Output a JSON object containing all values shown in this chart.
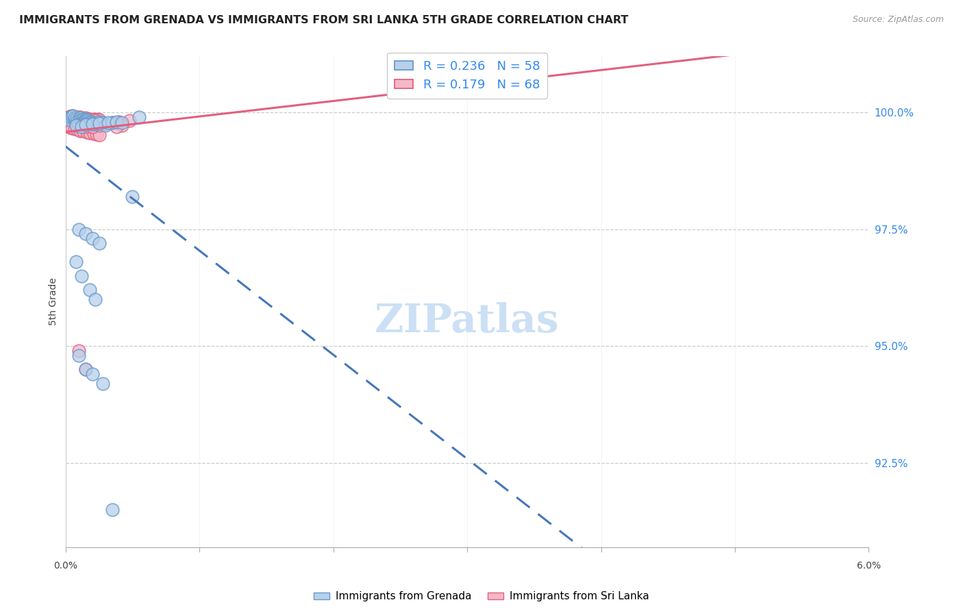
{
  "title": "IMMIGRANTS FROM GRENADA VS IMMIGRANTS FROM SRI LANKA 5TH GRADE CORRELATION CHART",
  "source": "Source: ZipAtlas.com",
  "ylabel": "5th Grade",
  "yaxis_labels": [
    "100.0%",
    "97.5%",
    "95.0%",
    "92.5%"
  ],
  "yaxis_values": [
    1.0,
    0.975,
    0.95,
    0.925
  ],
  "xmin": 0.0,
  "xmax": 0.06,
  "ymin": 0.907,
  "ymax": 1.012,
  "legend_r1": "0.236",
  "legend_n1": "58",
  "legend_r2": "0.179",
  "legend_n2": "68",
  "color_grenada_face": "#b8d0ea",
  "color_grenada_edge": "#6699cc",
  "color_srilanka_face": "#f5b8c8",
  "color_srilanka_edge": "#e06080",
  "color_line_grenada": "#4477bb",
  "color_line_srilanka": "#e06080",
  "color_title": "#222222",
  "color_rhs_labels": "#3388ee",
  "watermark_color": "#cce0f5",
  "scatter_grenada_x": [
    0.0002,
    0.0003,
    0.0005,
    0.0006,
    0.0007,
    0.0008,
    0.0009,
    0.001,
    0.001,
    0.0011,
    0.0011,
    0.0012,
    0.0012,
    0.0013,
    0.0013,
    0.0014,
    0.0014,
    0.0015,
    0.0015,
    0.0016,
    0.0016,
    0.0017,
    0.0017,
    0.0018,
    0.0018,
    0.0019,
    0.002,
    0.002,
    0.0021,
    0.0022,
    0.0023,
    0.0025,
    0.0028,
    0.003,
    0.0035,
    0.0008,
    0.0012,
    0.0015,
    0.002,
    0.0025,
    0.0032,
    0.0038,
    0.0042,
    0.005,
    0.0055,
    0.001,
    0.0015,
    0.002,
    0.0025,
    0.0008,
    0.0012,
    0.0018,
    0.0022,
    0.001,
    0.0015,
    0.002,
    0.0028,
    0.0035
  ],
  "scatter_grenada_y": [
    0.9985,
    0.999,
    0.9992,
    0.9993,
    0.9988,
    0.9986,
    0.9982,
    0.998,
    0.9975,
    0.9988,
    0.9984,
    0.9982,
    0.9978,
    0.9985,
    0.998,
    0.9983,
    0.9979,
    0.9985,
    0.9982,
    0.9984,
    0.998,
    0.9982,
    0.9978,
    0.998,
    0.9977,
    0.9979,
    0.9978,
    0.9975,
    0.9977,
    0.9976,
    0.9975,
    0.998,
    0.9978,
    0.9972,
    0.9978,
    0.9972,
    0.997,
    0.9974,
    0.9975,
    0.9976,
    0.9978,
    0.998,
    0.9978,
    0.982,
    0.999,
    0.975,
    0.974,
    0.973,
    0.972,
    0.968,
    0.965,
    0.962,
    0.96,
    0.948,
    0.945,
    0.944,
    0.942,
    0.915
  ],
  "scatter_srilanka_x": [
    0.0002,
    0.0003,
    0.0004,
    0.0005,
    0.0006,
    0.0007,
    0.0008,
    0.0009,
    0.001,
    0.001,
    0.0011,
    0.0012,
    0.0013,
    0.0014,
    0.0015,
    0.0016,
    0.0017,
    0.0018,
    0.0019,
    0.002,
    0.0021,
    0.0022,
    0.0023,
    0.0024,
    0.0025,
    0.0006,
    0.0008,
    0.001,
    0.0012,
    0.0014,
    0.0016,
    0.0018,
    0.002,
    0.0022,
    0.0003,
    0.0005,
    0.0008,
    0.0011,
    0.0014,
    0.0017,
    0.002,
    0.0003,
    0.0005,
    0.0007,
    0.0009,
    0.0011,
    0.0013,
    0.0016,
    0.0018,
    0.0021,
    0.0023,
    0.0025,
    0.0008,
    0.0012,
    0.0018,
    0.0025,
    0.0035,
    0.004,
    0.0048,
    0.0042,
    0.0038,
    0.003,
    0.0028,
    0.0015,
    0.002,
    0.0025,
    0.001,
    0.0015
  ],
  "scatter_srilanka_y": [
    0.999,
    0.9992,
    0.9991,
    0.9993,
    0.999,
    0.9988,
    0.999,
    0.9989,
    0.999,
    0.9987,
    0.999,
    0.9988,
    0.9987,
    0.9986,
    0.9988,
    0.9986,
    0.9985,
    0.9984,
    0.9983,
    0.9984,
    0.9985,
    0.9983,
    0.9984,
    0.9985,
    0.9984,
    0.9986,
    0.9984,
    0.9984,
    0.9983,
    0.9984,
    0.9984,
    0.9985,
    0.9984,
    0.9983,
    0.998,
    0.9978,
    0.9975,
    0.9973,
    0.9972,
    0.997,
    0.9969,
    0.9968,
    0.9967,
    0.9965,
    0.9963,
    0.9961,
    0.996,
    0.9958,
    0.9956,
    0.9955,
    0.9953,
    0.9952,
    0.9982,
    0.998,
    0.9979,
    0.9978,
    0.9978,
    0.998,
    0.9982,
    0.9972,
    0.997,
    0.9975,
    0.9976,
    0.997,
    0.997,
    0.9972,
    0.949,
    0.945
  ]
}
